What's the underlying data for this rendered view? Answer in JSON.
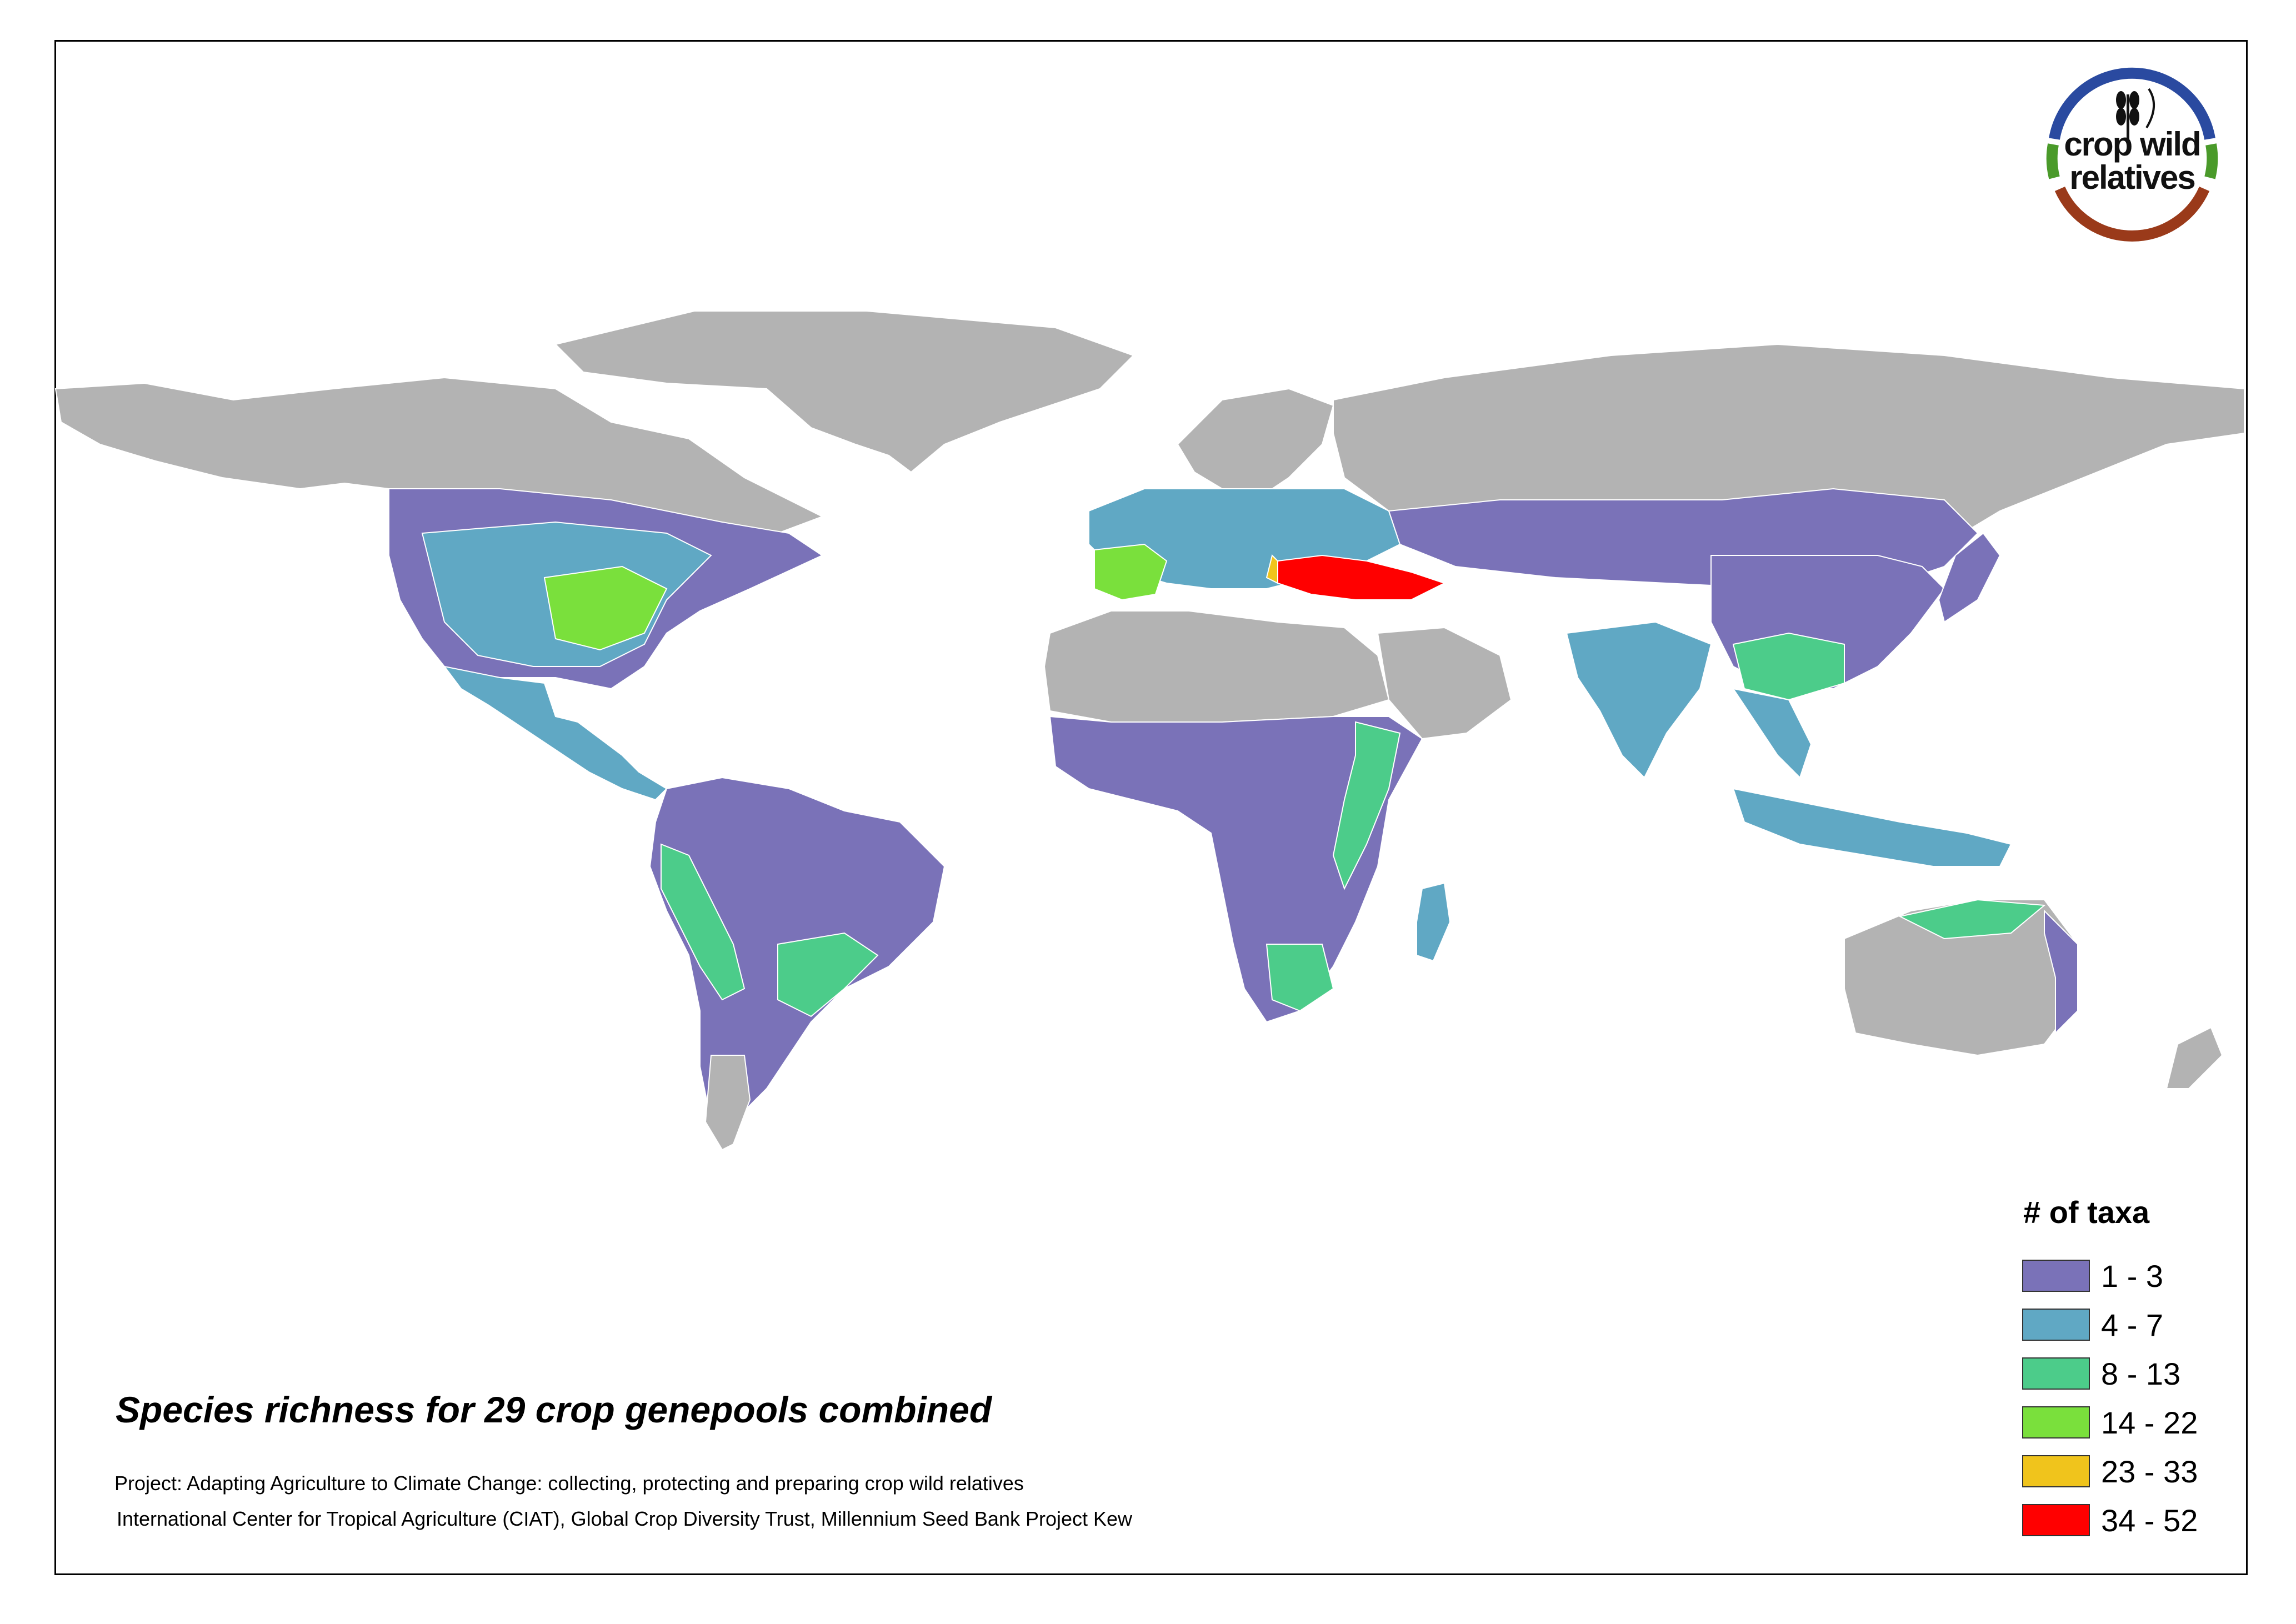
{
  "map": {
    "title": "Species richness for 29 crop genepools combined",
    "credit_project": "Project: Adapting Agriculture to Climate Change: collecting, protecting and preparing crop wild relatives",
    "credit_institutions": "International Center for Tropical Agriculture (CIAT), Global Crop Diversity Trust, Millennium Seed Bank Project Kew",
    "no_data_color": "#b3b3b3",
    "ocean_color": "#ffffff"
  },
  "logo": {
    "line1": "crop wild",
    "line2": "relatives",
    "ring_colors": [
      "#2a4aa0",
      "#4a9a2a",
      "#9a3a1a"
    ]
  },
  "legend": {
    "title": "# of taxa",
    "classes": [
      {
        "label": "1 - 3",
        "color": "#7a72b8"
      },
      {
        "label": "4 - 7",
        "color": "#60a8c4"
      },
      {
        "label": "8 - 13",
        "color": "#4ccc8a"
      },
      {
        "label": "14 - 22",
        "color": "#7ae03c"
      },
      {
        "label": "23 - 33",
        "color": "#f0c41c"
      },
      {
        "label": "34 - 52",
        "color": "#ff0000"
      }
    ]
  }
}
